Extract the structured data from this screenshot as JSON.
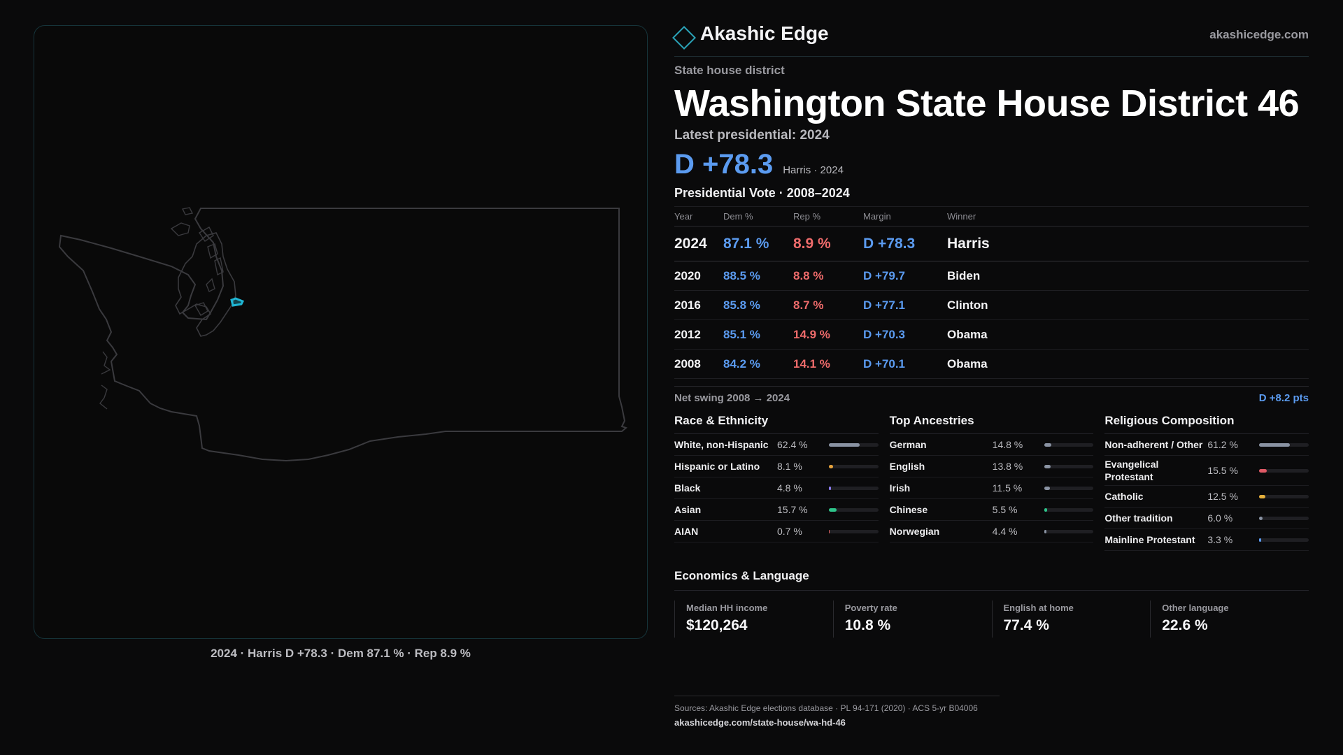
{
  "brand": {
    "name": "Akashic Edge",
    "url": "akashicedge.com",
    "accent": "#2aa3b8"
  },
  "header": {
    "eyebrow": "State house district",
    "title": "Washington State House District 46",
    "latest_label": "Latest presidential: 2024",
    "latest_margin": "D +78.3",
    "latest_sub": "Harris · 2024"
  },
  "map": {
    "caption": "2024 · Harris D +78.3 · Dem 87.1 % · Rep 8.9 %",
    "outline_color": "#3a3a3e",
    "district_color": "#1fb6d4"
  },
  "presidential": {
    "title": "Presidential Vote · 2008–2024",
    "headers": {
      "year": "Year",
      "dem": "Dem %",
      "rep": "Rep %",
      "margin": "Margin",
      "winner": "Winner"
    },
    "rows": [
      {
        "year": "2024",
        "dem": "87.1 %",
        "rep": "8.9 %",
        "margin": "D +78.3",
        "winner": "Harris"
      },
      {
        "year": "2020",
        "dem": "88.5 %",
        "rep": "8.8 %",
        "margin": "D +79.7",
        "winner": "Biden"
      },
      {
        "year": "2016",
        "dem": "85.8 %",
        "rep": "8.7 %",
        "margin": "D +77.1",
        "winner": "Clinton"
      },
      {
        "year": "2012",
        "dem": "85.1 %",
        "rep": "14.9 %",
        "margin": "D +70.3",
        "winner": "Obama"
      },
      {
        "year": "2008",
        "dem": "84.2 %",
        "rep": "14.1 %",
        "margin": "D +70.1",
        "winner": "Obama"
      }
    ],
    "swing_label": "Net swing 2008 → 2024",
    "swing_value": "D +8.2 pts"
  },
  "race": {
    "title": "Race & Ethnicity",
    "rows": [
      {
        "label": "White, non-Hispanic",
        "pct": "62.4 %",
        "value": 62.4,
        "color": "#8a93a3"
      },
      {
        "label": "Hispanic or Latino",
        "pct": "8.1 %",
        "value": 8.1,
        "color": "#e6a23c"
      },
      {
        "label": "Black",
        "pct": "4.8 %",
        "value": 4.8,
        "color": "#8c7cf0"
      },
      {
        "label": "Asian",
        "pct": "15.7 %",
        "value": 15.7,
        "color": "#2ec48a"
      },
      {
        "label": "AIAN",
        "pct": "0.7 %",
        "value": 0.7,
        "color": "#e06060"
      }
    ]
  },
  "ancestry": {
    "title": "Top Ancestries",
    "rows": [
      {
        "label": "German",
        "pct": "14.8 %",
        "value": 14.8,
        "color": "#8a93a3"
      },
      {
        "label": "English",
        "pct": "13.8 %",
        "value": 13.8,
        "color": "#8a93a3"
      },
      {
        "label": "Irish",
        "pct": "11.5 %",
        "value": 11.5,
        "color": "#8a93a3"
      },
      {
        "label": "Chinese",
        "pct": "5.5 %",
        "value": 5.5,
        "color": "#2ec48a"
      },
      {
        "label": "Norwegian",
        "pct": "4.4 %",
        "value": 4.4,
        "color": "#8a93a3"
      }
    ]
  },
  "religion": {
    "title": "Religious Composition",
    "rows": [
      {
        "label": "Non-adherent / Other",
        "pct": "61.2 %",
        "value": 61.2,
        "color": "#8a93a3"
      },
      {
        "label": "Evangelical Protestant",
        "pct": "15.5 %",
        "value": 15.5,
        "color": "#e05a66"
      },
      {
        "label": "Catholic",
        "pct": "12.5 %",
        "value": 12.5,
        "color": "#e6b03c"
      },
      {
        "label": "Other tradition",
        "pct": "6.0 %",
        "value": 6.0,
        "color": "#8a93a3"
      },
      {
        "label": "Mainline Protestant",
        "pct": "3.3 %",
        "value": 3.3,
        "color": "#5b9bf0"
      }
    ]
  },
  "economics": {
    "title": "Economics & Language",
    "stats": [
      {
        "label": "Median HH income",
        "value": "$120,264"
      },
      {
        "label": "Poverty rate",
        "value": "10.8 %"
      },
      {
        "label": "English at home",
        "value": "77.4 %"
      },
      {
        "label": "Other language",
        "value": "22.6 %"
      }
    ]
  },
  "footer": {
    "sources": "Sources: Akashic Edge elections database · PL 94-171 (2020) · ACS 5-yr B04006",
    "url": "akashicedge.com/state-house/wa-hd-46"
  }
}
